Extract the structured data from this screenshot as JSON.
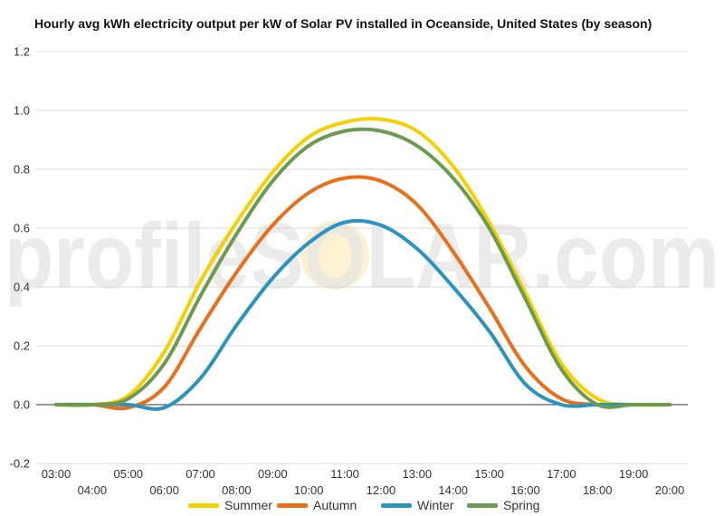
{
  "chart_data": {
    "type": "line",
    "title": "Hourly avg kWh electricity output per kW of Solar PV installed in Oceanside, United States (by season)",
    "watermark": "profileSOLAR.com",
    "xlabel": "",
    "ylabel": "",
    "ylim": [
      -0.2,
      1.2
    ],
    "yticks": [
      "-0.2",
      "0.0",
      "0.2",
      "0.4",
      "0.6",
      "0.8",
      "1.0",
      "1.2"
    ],
    "grid": true,
    "legend_position": "bottom",
    "categories": [
      "03:00",
      "04:00",
      "05:00",
      "06:00",
      "07:00",
      "08:00",
      "09:00",
      "10:00",
      "11:00",
      "12:00",
      "13:00",
      "14:00",
      "15:00",
      "16:00",
      "17:00",
      "18:00",
      "19:00",
      "20:00"
    ],
    "series": [
      {
        "name": "Summer",
        "color": "#f5d000",
        "values": [
          0.0,
          0.0,
          0.03,
          0.18,
          0.42,
          0.62,
          0.79,
          0.91,
          0.96,
          0.97,
          0.93,
          0.81,
          0.62,
          0.38,
          0.14,
          0.02,
          0.0,
          0.0
        ]
      },
      {
        "name": "Autumn",
        "color": "#e8701a",
        "values": [
          0.0,
          0.0,
          -0.01,
          0.06,
          0.26,
          0.45,
          0.61,
          0.72,
          0.77,
          0.76,
          0.68,
          0.52,
          0.33,
          0.13,
          0.02,
          0.0,
          0.0,
          0.0
        ]
      },
      {
        "name": "Winter",
        "color": "#2a93c0",
        "values": [
          0.0,
          0.0,
          0.0,
          -0.01,
          0.09,
          0.27,
          0.43,
          0.55,
          0.62,
          0.61,
          0.53,
          0.4,
          0.25,
          0.07,
          0.0,
          0.0,
          0.0,
          0.0
        ]
      },
      {
        "name": "Spring",
        "color": "#6b9a50",
        "values": [
          0.0,
          0.0,
          0.02,
          0.14,
          0.37,
          0.58,
          0.76,
          0.88,
          0.93,
          0.93,
          0.88,
          0.77,
          0.6,
          0.36,
          0.12,
          0.0,
          0.0,
          0.0
        ]
      }
    ]
  }
}
